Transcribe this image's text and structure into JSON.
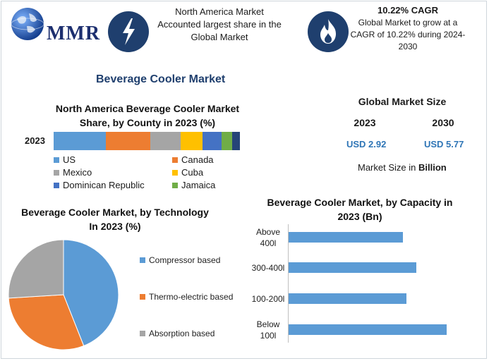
{
  "header": {
    "logo_text": "MMR",
    "box1_text": "North America Market Accounted largest share in the Global Market",
    "box2_title": "10.22% CAGR",
    "box2_text": "Global Market to grow at a CAGR of 10.22% during 2024-2030",
    "icon1": "lightning-icon",
    "icon2": "flame-icon"
  },
  "main_title": "Beverage Cooler Market",
  "global": {
    "title": "Global Market Size",
    "year1": "2023",
    "year2": "2030",
    "value1": "USD 2.92",
    "value2": "USD 5.77",
    "note_prefix": "Market Size in ",
    "note_bold": "Billion"
  },
  "colors": {
    "US": "#5b9bd5",
    "Canada": "#ed7d31",
    "Mexico": "#a5a5a5",
    "Cuba": "#ffc000",
    "Dominican Republic": "#4472c4",
    "Jamaica": "#70ad47",
    "Other": "#264478"
  },
  "chart_data": [
    {
      "type": "bar",
      "orientation": "horizontal-stacked",
      "title": "North America Beverage Cooler Market Share, by County in 2023 (%)",
      "categories": [
        "2023"
      ],
      "series": [
        {
          "name": "US",
          "values": [
            28
          ]
        },
        {
          "name": "Canada",
          "values": [
            24
          ]
        },
        {
          "name": "Mexico",
          "values": [
            16
          ]
        },
        {
          "name": "Cuba",
          "values": [
            12
          ]
        },
        {
          "name": "Dominican Republic",
          "values": [
            10
          ]
        },
        {
          "name": "Jamaica",
          "values": [
            6
          ]
        },
        {
          "values": [
            4
          ]
        }
      ]
    },
    {
      "type": "pie",
      "title": "Beverage Cooler Market, by Technology In 2023 (%)",
      "labels": [
        "Compressor based",
        "Thermo-electric based",
        "Absorption based"
      ],
      "values": [
        44,
        30,
        26
      ],
      "colors": [
        "#5b9bd5",
        "#ed7d31",
        "#a5a5a5"
      ]
    },
    {
      "type": "bar",
      "orientation": "horizontal",
      "title": "Beverage Cooler Market, by Capacity in 2023 (Bn)",
      "categories": [
        "Above 400l",
        "300-400l",
        "100-200l",
        "Below 100l"
      ],
      "values": [
        0.6,
        0.67,
        0.62,
        0.83
      ],
      "xlim": [
        0,
        1.0
      ]
    }
  ]
}
